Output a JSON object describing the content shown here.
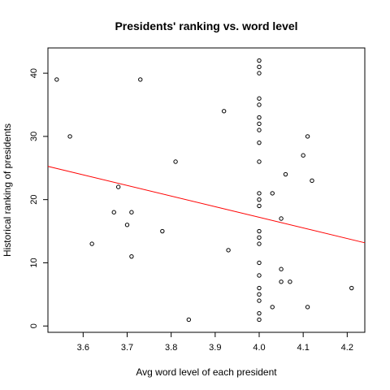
{
  "chart_data": {
    "type": "scatter",
    "title": "Presidents' ranking vs. word level",
    "xlabel": "Avg word level of each president",
    "ylabel": "Historical ranking of presidents",
    "xlim": [
      3.52,
      4.24
    ],
    "ylim": [
      -1,
      44
    ],
    "x_ticks": [
      3.6,
      3.7,
      3.8,
      3.9,
      4.0,
      4.1,
      4.2
    ],
    "x_tick_labels": [
      "3.6",
      "3.7",
      "3.8",
      "3.9",
      "4.0",
      "4.1",
      "4.2"
    ],
    "y_ticks": [
      0,
      10,
      20,
      30,
      40
    ],
    "y_tick_labels": [
      "0",
      "10",
      "20",
      "30",
      "40"
    ],
    "grid": false,
    "legend": "none",
    "point_color": "#000000",
    "fit_line": {
      "color": "#ff0000",
      "slope": -16.8,
      "intercept": 84.4
    },
    "points": [
      {
        "x": 3.54,
        "y": 39
      },
      {
        "x": 3.57,
        "y": 30
      },
      {
        "x": 3.62,
        "y": 13
      },
      {
        "x": 3.67,
        "y": 18
      },
      {
        "x": 3.68,
        "y": 22
      },
      {
        "x": 3.7,
        "y": 16
      },
      {
        "x": 3.71,
        "y": 18
      },
      {
        "x": 3.71,
        "y": 11
      },
      {
        "x": 3.73,
        "y": 39
      },
      {
        "x": 3.78,
        "y": 15
      },
      {
        "x": 3.81,
        "y": 26
      },
      {
        "x": 3.84,
        "y": 1
      },
      {
        "x": 3.92,
        "y": 34
      },
      {
        "x": 3.93,
        "y": 12
      },
      {
        "x": 4.0,
        "y": 42
      },
      {
        "x": 4.0,
        "y": 41
      },
      {
        "x": 4.0,
        "y": 40
      },
      {
        "x": 4.0,
        "y": 36
      },
      {
        "x": 4.0,
        "y": 35
      },
      {
        "x": 4.0,
        "y": 33
      },
      {
        "x": 4.0,
        "y": 32
      },
      {
        "x": 4.0,
        "y": 31
      },
      {
        "x": 4.0,
        "y": 29
      },
      {
        "x": 4.0,
        "y": 26
      },
      {
        "x": 4.0,
        "y": 21
      },
      {
        "x": 4.0,
        "y": 20
      },
      {
        "x": 4.0,
        "y": 19
      },
      {
        "x": 4.0,
        "y": 15
      },
      {
        "x": 4.0,
        "y": 14
      },
      {
        "x": 4.0,
        "y": 13
      },
      {
        "x": 4.0,
        "y": 10
      },
      {
        "x": 4.0,
        "y": 8
      },
      {
        "x": 4.0,
        "y": 6
      },
      {
        "x": 4.0,
        "y": 5
      },
      {
        "x": 4.0,
        "y": 4
      },
      {
        "x": 4.0,
        "y": 2
      },
      {
        "x": 4.0,
        "y": 1
      },
      {
        "x": 4.03,
        "y": 21
      },
      {
        "x": 4.03,
        "y": 3
      },
      {
        "x": 4.05,
        "y": 17
      },
      {
        "x": 4.05,
        "y": 9
      },
      {
        "x": 4.05,
        "y": 7
      },
      {
        "x": 4.06,
        "y": 24
      },
      {
        "x": 4.07,
        "y": 7
      },
      {
        "x": 4.1,
        "y": 27
      },
      {
        "x": 4.11,
        "y": 30
      },
      {
        "x": 4.11,
        "y": 3
      },
      {
        "x": 4.12,
        "y": 23
      },
      {
        "x": 4.21,
        "y": 6
      }
    ]
  }
}
